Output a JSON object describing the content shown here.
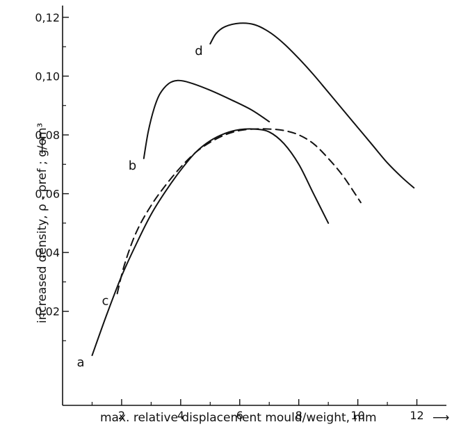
{
  "chart_data": {
    "type": "line",
    "title": "",
    "xlabel": "max. relative displacement mould/weight, mm",
    "ylabel": "increased density, ρ - ρref ; g/cm³",
    "xlim": [
      0,
      13
    ],
    "ylim": [
      -0.012,
      0.124
    ],
    "xticks": [
      2,
      4,
      6,
      8,
      10,
      12
    ],
    "yticks": [
      0.02,
      0.04,
      0.06,
      0.08,
      0.1,
      0.12
    ],
    "ytick_labels": [
      "0,02",
      "0,04",
      "0,06",
      "0,08",
      "0,10",
      "0,12"
    ],
    "grid": false,
    "series": [
      {
        "name": "a",
        "style": "solid",
        "x": [
          1.0,
          1.5,
          2.0,
          2.5,
          3.0,
          3.5,
          4.0,
          4.5,
          5.0,
          5.5,
          6.0,
          6.5,
          7.0,
          7.5,
          8.0,
          8.5,
          9.0
        ],
        "y": [
          0.005,
          0.019,
          0.032,
          0.043,
          0.053,
          0.061,
          0.068,
          0.074,
          0.078,
          0.0805,
          0.0818,
          0.082,
          0.081,
          0.077,
          0.07,
          0.06,
          0.05
        ]
      },
      {
        "name": "b",
        "style": "solid",
        "x": [
          2.75,
          2.9,
          3.1,
          3.3,
          3.6,
          3.9,
          4.3,
          5.0,
          5.7,
          6.4,
          7.0
        ],
        "y": [
          0.072,
          0.081,
          0.089,
          0.094,
          0.0975,
          0.0985,
          0.0978,
          0.0952,
          0.092,
          0.0885,
          0.0845
        ]
      },
      {
        "name": "c",
        "style": "dashed",
        "x": [
          1.85,
          2.1,
          2.5,
          3.0,
          3.5,
          4.0,
          4.5,
          5.0,
          5.5,
          6.0,
          6.5,
          7.0,
          7.5,
          8.0,
          8.5,
          9.0,
          9.5,
          10.1
        ],
        "y": [
          0.026,
          0.036,
          0.047,
          0.056,
          0.063,
          0.069,
          0.074,
          0.0775,
          0.08,
          0.0815,
          0.082,
          0.082,
          0.0815,
          0.08,
          0.077,
          0.072,
          0.066,
          0.057
        ]
      },
      {
        "name": "d",
        "style": "solid",
        "x": [
          5.0,
          5.2,
          5.5,
          6.0,
          6.5,
          7.0,
          7.5,
          8.0,
          8.5,
          9.0,
          9.5,
          10.0,
          10.5,
          11.0,
          11.5,
          11.9
        ],
        "y": [
          0.111,
          0.1145,
          0.1168,
          0.118,
          0.1175,
          0.115,
          0.111,
          0.106,
          0.1005,
          0.0945,
          0.0885,
          0.0825,
          0.0765,
          0.0705,
          0.0655,
          0.062
        ]
      }
    ]
  }
}
